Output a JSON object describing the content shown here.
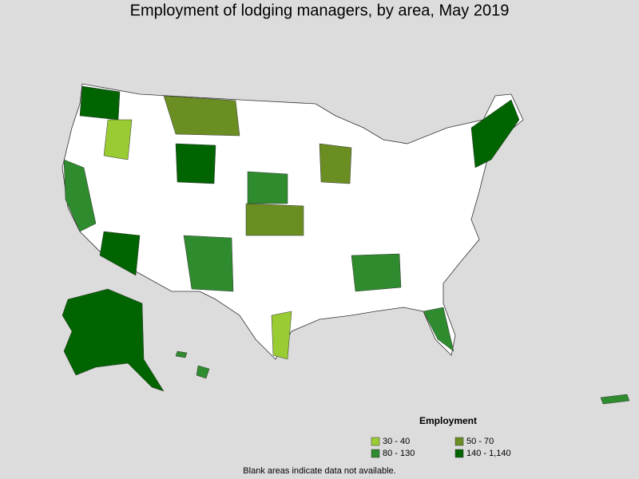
{
  "title": "Employment of lodging managers, by area, May 2019",
  "legend": {
    "title": "Employment",
    "items": [
      {
        "label": "30 - 40",
        "color": "#99cc33"
      },
      {
        "label": "50 - 70",
        "color": "#6b8e23"
      },
      {
        "label": "80 - 130",
        "color": "#2e8b2e"
      },
      {
        "label": "140 - 1,140",
        "color": "#006400"
      }
    ]
  },
  "footnote": "Blank areas indicate data not available."
}
